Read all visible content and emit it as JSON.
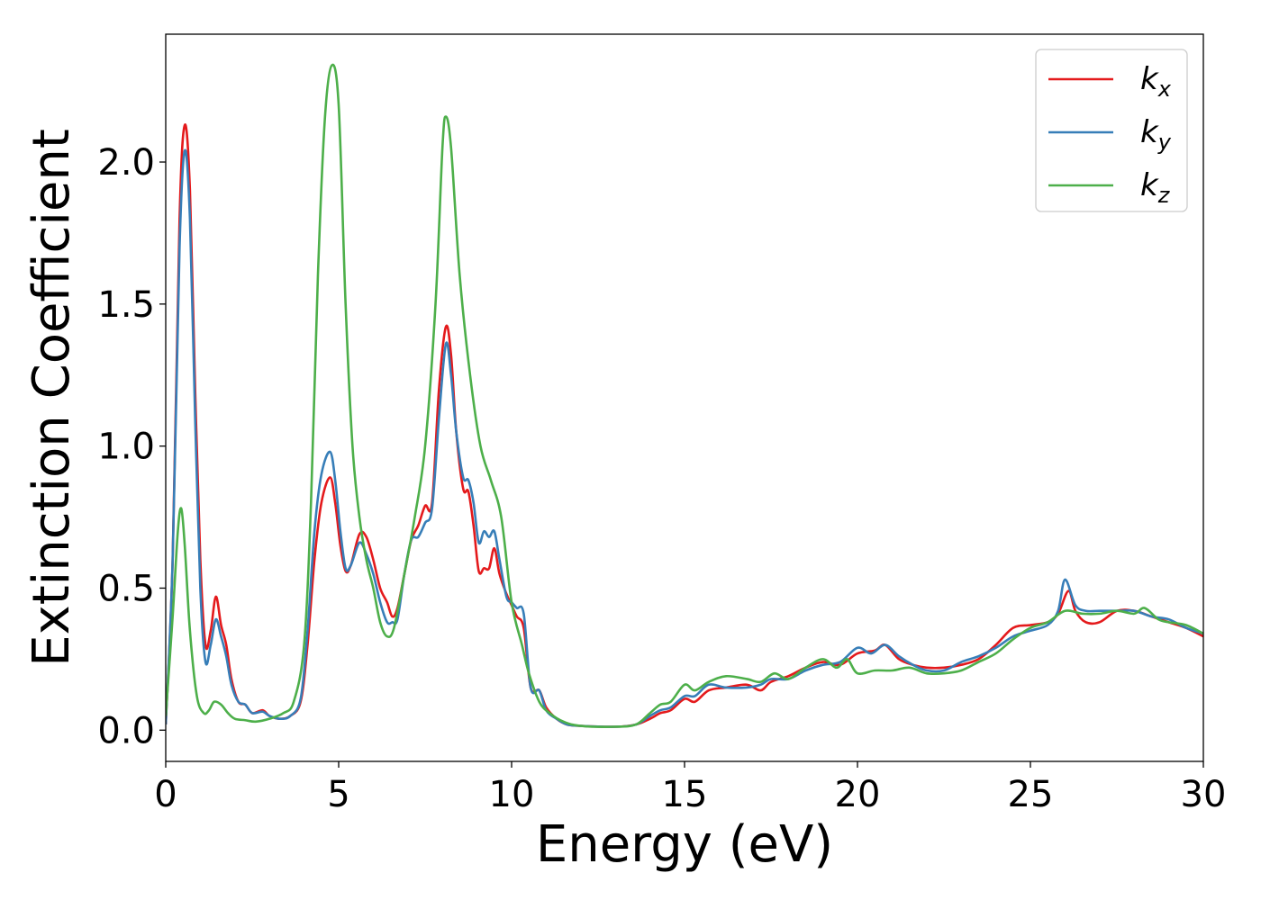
{
  "chart_data": {
    "type": "line",
    "title": "",
    "xlabel": "Energy (eV)",
    "ylabel": "Extinction Coefficient",
    "xlim": [
      0,
      30
    ],
    "ylim": [
      -0.11,
      2.45
    ],
    "xticks": [
      0,
      5,
      10,
      15,
      20,
      25,
      30
    ],
    "xtick_labels": [
      "0",
      "5",
      "10",
      "15",
      "20",
      "25",
      "30"
    ],
    "yticks": [
      0.0,
      0.5,
      1.0,
      1.5,
      2.0
    ],
    "ytick_labels": [
      "0.0",
      "0.5",
      "1.0",
      "1.5",
      "2.0"
    ],
    "grid": false,
    "legend_position": "top-right",
    "series": [
      {
        "legend_base": "k",
        "legend_sub": "x",
        "color": "#e41a1c",
        "points": [
          [
            0,
            0.02
          ],
          [
            0.2,
            0.6
          ],
          [
            0.4,
            1.8
          ],
          [
            0.55,
            2.13
          ],
          [
            0.7,
            1.9
          ],
          [
            0.85,
            1.2
          ],
          [
            1.0,
            0.6
          ],
          [
            1.15,
            0.3
          ],
          [
            1.3,
            0.35
          ],
          [
            1.45,
            0.47
          ],
          [
            1.6,
            0.37
          ],
          [
            1.75,
            0.3
          ],
          [
            1.9,
            0.18
          ],
          [
            2.1,
            0.1
          ],
          [
            2.3,
            0.09
          ],
          [
            2.5,
            0.06
          ],
          [
            2.8,
            0.07
          ],
          [
            3.0,
            0.05
          ],
          [
            3.3,
            0.04
          ],
          [
            3.6,
            0.05
          ],
          [
            3.9,
            0.1
          ],
          [
            4.1,
            0.3
          ],
          [
            4.3,
            0.6
          ],
          [
            4.5,
            0.8
          ],
          [
            4.75,
            0.89
          ],
          [
            4.9,
            0.8
          ],
          [
            5.05,
            0.65
          ],
          [
            5.2,
            0.56
          ],
          [
            5.35,
            0.58
          ],
          [
            5.6,
            0.69
          ],
          [
            5.8,
            0.68
          ],
          [
            6.0,
            0.6
          ],
          [
            6.2,
            0.5
          ],
          [
            6.4,
            0.45
          ],
          [
            6.55,
            0.4
          ],
          [
            6.7,
            0.43
          ],
          [
            6.9,
            0.55
          ],
          [
            7.1,
            0.67
          ],
          [
            7.3,
            0.72
          ],
          [
            7.5,
            0.79
          ],
          [
            7.7,
            0.8
          ],
          [
            7.9,
            1.2
          ],
          [
            8.1,
            1.42
          ],
          [
            8.25,
            1.32
          ],
          [
            8.4,
            1.05
          ],
          [
            8.6,
            0.85
          ],
          [
            8.75,
            0.84
          ],
          [
            8.9,
            0.72
          ],
          [
            9.05,
            0.56
          ],
          [
            9.2,
            0.57
          ],
          [
            9.35,
            0.57
          ],
          [
            9.5,
            0.64
          ],
          [
            9.65,
            0.55
          ],
          [
            9.85,
            0.48
          ],
          [
            10.0,
            0.44
          ],
          [
            10.15,
            0.4
          ],
          [
            10.35,
            0.36
          ],
          [
            10.55,
            0.15
          ],
          [
            10.8,
            0.14
          ],
          [
            11.0,
            0.08
          ],
          [
            11.3,
            0.04
          ],
          [
            11.6,
            0.02
          ],
          [
            12.0,
            0.015
          ],
          [
            13.0,
            0.012
          ],
          [
            13.6,
            0.02
          ],
          [
            14.0,
            0.04
          ],
          [
            14.3,
            0.06
          ],
          [
            14.6,
            0.07
          ],
          [
            15.0,
            0.11
          ],
          [
            15.3,
            0.1
          ],
          [
            15.7,
            0.14
          ],
          [
            16.2,
            0.15
          ],
          [
            16.8,
            0.16
          ],
          [
            17.2,
            0.14
          ],
          [
            17.5,
            0.17
          ],
          [
            18.0,
            0.19
          ],
          [
            18.5,
            0.22
          ],
          [
            19.0,
            0.24
          ],
          [
            19.5,
            0.23
          ],
          [
            20.0,
            0.27
          ],
          [
            20.5,
            0.28
          ],
          [
            20.8,
            0.3
          ],
          [
            21.2,
            0.25
          ],
          [
            21.6,
            0.23
          ],
          [
            22.0,
            0.22
          ],
          [
            22.5,
            0.22
          ],
          [
            23.0,
            0.23
          ],
          [
            23.5,
            0.25
          ],
          [
            24.0,
            0.3
          ],
          [
            24.5,
            0.36
          ],
          [
            25.0,
            0.37
          ],
          [
            25.5,
            0.38
          ],
          [
            25.8,
            0.41
          ],
          [
            26.1,
            0.49
          ],
          [
            26.3,
            0.42
          ],
          [
            26.6,
            0.38
          ],
          [
            27.0,
            0.38
          ],
          [
            27.5,
            0.42
          ],
          [
            28.0,
            0.42
          ],
          [
            28.5,
            0.4
          ],
          [
            29.0,
            0.38
          ],
          [
            29.5,
            0.36
          ],
          [
            30.0,
            0.33
          ]
        ]
      },
      {
        "legend_base": "k",
        "legend_sub": "y",
        "color": "#377eb8",
        "points": [
          [
            0,
            0.02
          ],
          [
            0.2,
            0.6
          ],
          [
            0.4,
            1.7
          ],
          [
            0.55,
            2.04
          ],
          [
            0.7,
            1.8
          ],
          [
            0.85,
            1.1
          ],
          [
            1.0,
            0.5
          ],
          [
            1.15,
            0.24
          ],
          [
            1.3,
            0.3
          ],
          [
            1.45,
            0.39
          ],
          [
            1.6,
            0.33
          ],
          [
            1.75,
            0.26
          ],
          [
            1.9,
            0.16
          ],
          [
            2.1,
            0.1
          ],
          [
            2.3,
            0.09
          ],
          [
            2.5,
            0.06
          ],
          [
            2.8,
            0.065
          ],
          [
            3.0,
            0.05
          ],
          [
            3.3,
            0.04
          ],
          [
            3.6,
            0.05
          ],
          [
            3.9,
            0.11
          ],
          [
            4.1,
            0.35
          ],
          [
            4.3,
            0.7
          ],
          [
            4.5,
            0.9
          ],
          [
            4.75,
            0.98
          ],
          [
            4.9,
            0.88
          ],
          [
            5.05,
            0.7
          ],
          [
            5.2,
            0.57
          ],
          [
            5.35,
            0.58
          ],
          [
            5.6,
            0.66
          ],
          [
            5.8,
            0.62
          ],
          [
            6.0,
            0.55
          ],
          [
            6.2,
            0.45
          ],
          [
            6.4,
            0.38
          ],
          [
            6.55,
            0.38
          ],
          [
            6.7,
            0.39
          ],
          [
            6.9,
            0.55
          ],
          [
            7.1,
            0.67
          ],
          [
            7.3,
            0.68
          ],
          [
            7.5,
            0.73
          ],
          [
            7.7,
            0.78
          ],
          [
            7.9,
            1.1
          ],
          [
            8.1,
            1.36
          ],
          [
            8.25,
            1.25
          ],
          [
            8.4,
            1.05
          ],
          [
            8.6,
            0.89
          ],
          [
            8.75,
            0.88
          ],
          [
            8.9,
            0.8
          ],
          [
            9.05,
            0.66
          ],
          [
            9.2,
            0.7
          ],
          [
            9.35,
            0.68
          ],
          [
            9.5,
            0.7
          ],
          [
            9.65,
            0.6
          ],
          [
            9.85,
            0.47
          ],
          [
            10.0,
            0.45
          ],
          [
            10.15,
            0.43
          ],
          [
            10.35,
            0.41
          ],
          [
            10.55,
            0.15
          ],
          [
            10.8,
            0.14
          ],
          [
            11.0,
            0.07
          ],
          [
            11.3,
            0.04
          ],
          [
            11.6,
            0.02
          ],
          [
            12.0,
            0.015
          ],
          [
            13.0,
            0.012
          ],
          [
            13.6,
            0.02
          ],
          [
            14.0,
            0.05
          ],
          [
            14.3,
            0.07
          ],
          [
            14.6,
            0.08
          ],
          [
            15.0,
            0.12
          ],
          [
            15.3,
            0.12
          ],
          [
            15.7,
            0.16
          ],
          [
            16.2,
            0.15
          ],
          [
            16.8,
            0.15
          ],
          [
            17.2,
            0.16
          ],
          [
            17.5,
            0.18
          ],
          [
            18.0,
            0.18
          ],
          [
            18.5,
            0.21
          ],
          [
            19.0,
            0.23
          ],
          [
            19.5,
            0.24
          ],
          [
            20.0,
            0.29
          ],
          [
            20.4,
            0.27
          ],
          [
            20.8,
            0.3
          ],
          [
            21.2,
            0.26
          ],
          [
            21.6,
            0.23
          ],
          [
            22.0,
            0.21
          ],
          [
            22.5,
            0.21
          ],
          [
            23.0,
            0.24
          ],
          [
            23.5,
            0.26
          ],
          [
            24.0,
            0.29
          ],
          [
            24.5,
            0.33
          ],
          [
            25.0,
            0.35
          ],
          [
            25.5,
            0.37
          ],
          [
            25.8,
            0.42
          ],
          [
            26.0,
            0.53
          ],
          [
            26.3,
            0.44
          ],
          [
            26.6,
            0.42
          ],
          [
            27.0,
            0.42
          ],
          [
            27.5,
            0.42
          ],
          [
            28.0,
            0.42
          ],
          [
            28.5,
            0.4
          ],
          [
            29.0,
            0.39
          ],
          [
            29.5,
            0.36
          ],
          [
            30.0,
            0.34
          ]
        ]
      },
      {
        "legend_base": "k",
        "legend_sub": "z",
        "color": "#4daf4a",
        "points": [
          [
            0,
            0.05
          ],
          [
            0.2,
            0.4
          ],
          [
            0.35,
            0.7
          ],
          [
            0.45,
            0.78
          ],
          [
            0.55,
            0.65
          ],
          [
            0.7,
            0.35
          ],
          [
            0.9,
            0.12
          ],
          [
            1.1,
            0.06
          ],
          [
            1.25,
            0.07
          ],
          [
            1.4,
            0.1
          ],
          [
            1.6,
            0.09
          ],
          [
            1.8,
            0.06
          ],
          [
            2.0,
            0.04
          ],
          [
            2.3,
            0.035
          ],
          [
            2.6,
            0.03
          ],
          [
            3.0,
            0.04
          ],
          [
            3.4,
            0.06
          ],
          [
            3.7,
            0.1
          ],
          [
            4.0,
            0.3
          ],
          [
            4.2,
            0.8
          ],
          [
            4.4,
            1.6
          ],
          [
            4.6,
            2.15
          ],
          [
            4.8,
            2.34
          ],
          [
            5.0,
            2.2
          ],
          [
            5.2,
            1.5
          ],
          [
            5.4,
            1.0
          ],
          [
            5.6,
            0.75
          ],
          [
            5.8,
            0.6
          ],
          [
            6.0,
            0.5
          ],
          [
            6.2,
            0.38
          ],
          [
            6.4,
            0.33
          ],
          [
            6.6,
            0.36
          ],
          [
            6.9,
            0.55
          ],
          [
            7.2,
            0.75
          ],
          [
            7.5,
            1.0
          ],
          [
            7.8,
            1.5
          ],
          [
            8.0,
            2.05
          ],
          [
            8.1,
            2.16
          ],
          [
            8.25,
            2.05
          ],
          [
            8.5,
            1.6
          ],
          [
            8.8,
            1.25
          ],
          [
            9.1,
            1.0
          ],
          [
            9.4,
            0.88
          ],
          [
            9.7,
            0.75
          ],
          [
            10.0,
            0.45
          ],
          [
            10.3,
            0.3
          ],
          [
            10.5,
            0.2
          ],
          [
            10.8,
            0.1
          ],
          [
            11.1,
            0.06
          ],
          [
            11.5,
            0.03
          ],
          [
            12.0,
            0.015
          ],
          [
            13.0,
            0.012
          ],
          [
            13.6,
            0.02
          ],
          [
            14.0,
            0.06
          ],
          [
            14.3,
            0.09
          ],
          [
            14.6,
            0.1
          ],
          [
            15.0,
            0.16
          ],
          [
            15.3,
            0.14
          ],
          [
            15.7,
            0.17
          ],
          [
            16.2,
            0.19
          ],
          [
            16.8,
            0.18
          ],
          [
            17.2,
            0.17
          ],
          [
            17.6,
            0.2
          ],
          [
            18.0,
            0.18
          ],
          [
            18.5,
            0.22
          ],
          [
            19.0,
            0.25
          ],
          [
            19.4,
            0.22
          ],
          [
            19.7,
            0.25
          ],
          [
            20.0,
            0.2
          ],
          [
            20.5,
            0.21
          ],
          [
            21.0,
            0.21
          ],
          [
            21.5,
            0.22
          ],
          [
            22.0,
            0.2
          ],
          [
            22.5,
            0.2
          ],
          [
            23.0,
            0.21
          ],
          [
            23.5,
            0.24
          ],
          [
            24.0,
            0.27
          ],
          [
            24.5,
            0.32
          ],
          [
            25.0,
            0.36
          ],
          [
            25.5,
            0.38
          ],
          [
            26.0,
            0.42
          ],
          [
            26.5,
            0.41
          ],
          [
            27.0,
            0.41
          ],
          [
            27.5,
            0.42
          ],
          [
            28.0,
            0.41
          ],
          [
            28.3,
            0.43
          ],
          [
            28.7,
            0.39
          ],
          [
            29.0,
            0.38
          ],
          [
            29.5,
            0.37
          ],
          [
            30.0,
            0.34
          ]
        ]
      }
    ]
  }
}
